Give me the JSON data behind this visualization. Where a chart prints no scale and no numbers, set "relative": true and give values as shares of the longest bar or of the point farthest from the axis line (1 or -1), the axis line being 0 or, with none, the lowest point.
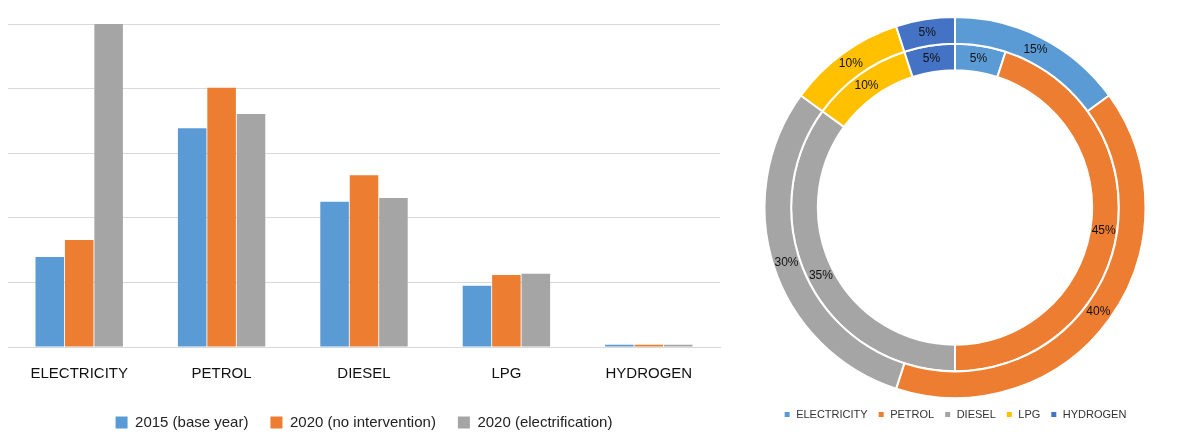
{
  "chart_data": [
    {
      "type": "bar",
      "relative": true,
      "categories": [
        "ELECTRICITY",
        "PETROL",
        "DIESEL",
        "LPG",
        "HYDROGEN"
      ],
      "grid": "y",
      "legend": "bottom",
      "series": [
        {
          "name": "2015 (base year)",
          "color": "#5b9bd5",
          "values": [
            0.279,
            0.677,
            0.45,
            0.19,
            0.007
          ]
        },
        {
          "name": "2020 (no intervention)",
          "color": "#ed7d31",
          "values": [
            0.331,
            0.803,
            0.532,
            0.223,
            0.007
          ]
        },
        {
          "name": "2020 (electrification)",
          "color": "#a5a5a5",
          "values": [
            1,
            0.721,
            0.461,
            0.227,
            0.007
          ]
        }
      ]
    },
    {
      "type": "donut",
      "categories": [
        "ELECTRICITY",
        "PETROL",
        "DIESEL",
        "LPG",
        "HYDROGEN"
      ],
      "colors": [
        "#5b9bd5",
        "#ed7d31",
        "#a5a5a5",
        "#ffc000",
        "#4472c4"
      ],
      "legend": "bottom",
      "series": [
        {
          "values": [
            15,
            40,
            30,
            10,
            5
          ],
          "value_labels": [
            "15%",
            "40%",
            "30%",
            "10%",
            "5%"
          ]
        },
        {
          "values": [
            5,
            45,
            35,
            10,
            5
          ],
          "value_labels": [
            "5%",
            "45%",
            "35%",
            "10%",
            "5%"
          ]
        }
      ]
    }
  ]
}
